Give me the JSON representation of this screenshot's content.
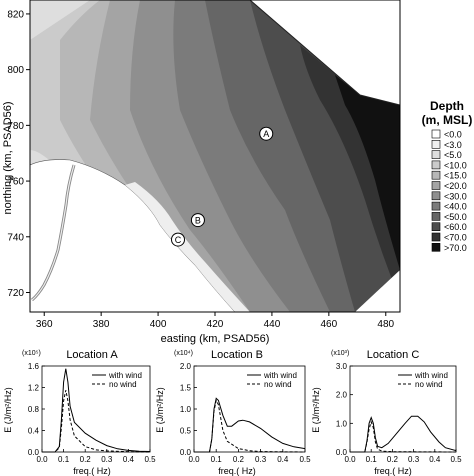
{
  "chart_data": [
    {
      "type": "heatmap",
      "xlabel": "easting (km, PSAD56)",
      "ylabel": "northing (km, PSAD56)",
      "xlim": [
        355,
        485
      ],
      "ylim": [
        713,
        825
      ],
      "xticks": [
        "360",
        "380",
        "400",
        "420",
        "440",
        "460",
        "480"
      ],
      "yticks": [
        "720",
        "740",
        "760",
        "780",
        "800",
        "820"
      ],
      "legend": {
        "title_line1": "Depth",
        "title_line2": "(m, MSL)",
        "placement": "right",
        "items": [
          {
            "label": "<0.0",
            "color": "#ffffff"
          },
          {
            "label": "<3.0",
            "color": "#eeeeee"
          },
          {
            "label": "<5.0",
            "color": "#dedede"
          },
          {
            "label": "<10.0",
            "color": "#cbcbcb"
          },
          {
            "label": "<15.0",
            "color": "#b7b7b7"
          },
          {
            "label": "<20.0",
            "color": "#a4a4a4"
          },
          {
            "label": "<30.0",
            "color": "#8f8f8f"
          },
          {
            "label": "<40.0",
            "color": "#7b7b7b"
          },
          {
            "label": "<50.0",
            "color": "#666666"
          },
          {
            "label": "<60.0",
            "color": "#4d4d4d"
          },
          {
            "label": "<70.0",
            "color": "#333333"
          },
          {
            "label": ">70.0",
            "color": "#111111"
          }
        ]
      },
      "locations": [
        {
          "label": "A",
          "easting": 438,
          "northing": 777
        },
        {
          "label": "B",
          "easting": 414,
          "northing": 746
        },
        {
          "label": "C",
          "easting": 407,
          "northing": 739
        }
      ]
    },
    {
      "type": "line",
      "title": "Location A",
      "multiplier": "(x10⁵)",
      "ylabel": "E (J/m²/Hz)",
      "xlabel": "freq.( Hz)",
      "xlim": [
        0,
        0.5
      ],
      "ylim": [
        0,
        1.6
      ],
      "xticks": [
        "0.0",
        "0.1",
        "0.2",
        "0.3",
        "0.4",
        "0.5"
      ],
      "yticks": [
        "0.0",
        "0.4",
        "0.8",
        "1.2",
        "1.6"
      ],
      "legend": "top-right",
      "series": [
        {
          "name": "with wind",
          "style": "solid",
          "points": [
            [
              0,
              0
            ],
            [
              0.06,
              0
            ],
            [
              0.08,
              0.1
            ],
            [
              0.09,
              0.6
            ],
            [
              0.1,
              1.3
            ],
            [
              0.11,
              1.55
            ],
            [
              0.12,
              1.3
            ],
            [
              0.13,
              0.85
            ],
            [
              0.15,
              0.55
            ],
            [
              0.2,
              0.35
            ],
            [
              0.25,
              0.22
            ],
            [
              0.3,
              0.12
            ],
            [
              0.35,
              0.06
            ],
            [
              0.4,
              0.03
            ],
            [
              0.45,
              0.015
            ],
            [
              0.5,
              0.01
            ]
          ]
        },
        {
          "name": "no wind",
          "style": "dashed",
          "points": [
            [
              0,
              0
            ],
            [
              0.06,
              0
            ],
            [
              0.08,
              0.08
            ],
            [
              0.09,
              0.45
            ],
            [
              0.1,
              0.95
            ],
            [
              0.11,
              1.15
            ],
            [
              0.12,
              0.95
            ],
            [
              0.13,
              0.6
            ],
            [
              0.15,
              0.3
            ],
            [
              0.2,
              0.1
            ],
            [
              0.25,
              0.04
            ],
            [
              0.3,
              0.02
            ],
            [
              0.4,
              0.005
            ],
            [
              0.5,
              0
            ]
          ]
        }
      ]
    },
    {
      "type": "line",
      "title": "Location B",
      "multiplier": "(x10⁴)",
      "ylabel": "E (J/m²/Hz)",
      "xlabel": "freq.( Hz)",
      "xlim": [
        0,
        0.5
      ],
      "ylim": [
        0,
        2.0
      ],
      "xticks": [
        "0.0",
        "0.1",
        "0.2",
        "0.3",
        "0.4",
        "0.5"
      ],
      "yticks": [
        "0.0",
        "0.5",
        "1.0",
        "1.5",
        "2.0"
      ],
      "legend": "top-right",
      "series": [
        {
          "name": "with wind",
          "style": "solid",
          "points": [
            [
              0,
              0
            ],
            [
              0.07,
              0
            ],
            [
              0.08,
              0.3
            ],
            [
              0.09,
              1.0
            ],
            [
              0.1,
              1.25
            ],
            [
              0.11,
              1.2
            ],
            [
              0.13,
              0.85
            ],
            [
              0.15,
              0.6
            ],
            [
              0.17,
              0.6
            ],
            [
              0.2,
              0.72
            ],
            [
              0.22,
              0.74
            ],
            [
              0.25,
              0.7
            ],
            [
              0.3,
              0.55
            ],
            [
              0.35,
              0.35
            ],
            [
              0.4,
              0.2
            ],
            [
              0.45,
              0.12
            ],
            [
              0.5,
              0.08
            ]
          ]
        },
        {
          "name": "no wind",
          "style": "dashed",
          "points": [
            [
              0,
              0
            ],
            [
              0.07,
              0
            ],
            [
              0.08,
              0.3
            ],
            [
              0.09,
              0.95
            ],
            [
              0.1,
              1.2
            ],
            [
              0.11,
              1.1
            ],
            [
              0.13,
              0.5
            ],
            [
              0.15,
              0.25
            ],
            [
              0.2,
              0.08
            ],
            [
              0.25,
              0.03
            ],
            [
              0.3,
              0.01
            ],
            [
              0.5,
              0
            ]
          ]
        }
      ]
    },
    {
      "type": "line",
      "title": "Location C",
      "multiplier": "(x10³)",
      "ylabel": "E (J/m²/Hz)",
      "xlabel": "freq.( Hz)",
      "xlim": [
        0,
        0.5
      ],
      "ylim": [
        0,
        3.0
      ],
      "xticks": [
        "0.0",
        "0.1",
        "0.2",
        "0.3",
        "0.4",
        "0.5"
      ],
      "yticks": [
        "0.0",
        "1.0",
        "2.0",
        "3.0"
      ],
      "legend": "top-right",
      "series": [
        {
          "name": "with wind",
          "style": "solid",
          "points": [
            [
              0,
              0
            ],
            [
              0.07,
              0
            ],
            [
              0.08,
              0.4
            ],
            [
              0.09,
              1.0
            ],
            [
              0.1,
              1.2
            ],
            [
              0.11,
              1.0
            ],
            [
              0.12,
              0.5
            ],
            [
              0.13,
              0.2
            ],
            [
              0.15,
              0.15
            ],
            [
              0.18,
              0.3
            ],
            [
              0.22,
              0.65
            ],
            [
              0.26,
              1.0
            ],
            [
              0.29,
              1.25
            ],
            [
              0.32,
              1.25
            ],
            [
              0.35,
              1.05
            ],
            [
              0.38,
              0.7
            ],
            [
              0.42,
              0.35
            ],
            [
              0.45,
              0.15
            ],
            [
              0.5,
              0.05
            ]
          ]
        },
        {
          "name": "no wind",
          "style": "dashed",
          "points": [
            [
              0,
              0
            ],
            [
              0.07,
              0
            ],
            [
              0.08,
              0.35
            ],
            [
              0.09,
              0.8
            ],
            [
              0.1,
              1.05
            ],
            [
              0.11,
              0.85
            ],
            [
              0.12,
              0.35
            ],
            [
              0.13,
              0.1
            ],
            [
              0.15,
              0.03
            ],
            [
              0.2,
              0.01
            ],
            [
              0.5,
              0
            ]
          ]
        }
      ]
    }
  ]
}
